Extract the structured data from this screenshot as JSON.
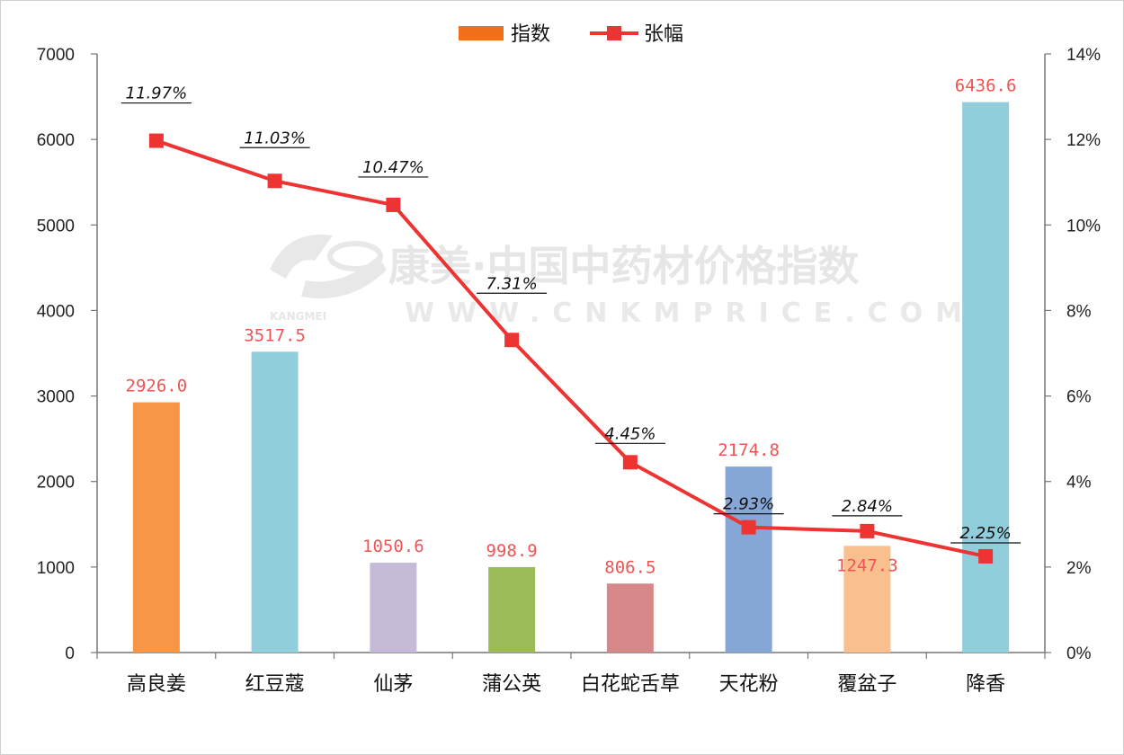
{
  "chart_data": {
    "type": "bar+line",
    "categories": [
      "高良姜",
      "红豆蔻",
      "仙茅",
      "蒲公英",
      "白花蛇舌草",
      "天花粉",
      "覆盆子",
      "降香"
    ],
    "series": [
      {
        "name": "指数",
        "type": "bar",
        "axis": "left",
        "values": [
          2926.0,
          3517.5,
          1050.6,
          998.9,
          806.5,
          2174.8,
          1247.3,
          6436.6
        ],
        "labels": [
          "2926.0",
          "3517.5",
          "1050.6",
          "998.9",
          "806.5",
          "2174.8",
          "1247.3",
          "6436.6"
        ],
        "colors": [
          "#f79646",
          "#92cddc",
          "#c5bbd8",
          "#9bbb59",
          "#d68888",
          "#86a6d6",
          "#fabf8f",
          "#92cddc"
        ]
      },
      {
        "name": "张幅",
        "type": "line",
        "axis": "right",
        "values": [
          11.97,
          11.03,
          10.47,
          7.31,
          4.45,
          2.93,
          2.84,
          2.25
        ],
        "labels": [
          "11.97%",
          "11.03%",
          "10.47%",
          "7.31%",
          "4.45%",
          "2.93%",
          "2.84%",
          "2.25%"
        ],
        "color": "#ee3333"
      }
    ],
    "y_left": {
      "min": 0,
      "max": 7000,
      "ticks": [
        "0",
        "1000",
        "2000",
        "3000",
        "4000",
        "5000",
        "6000",
        "7000"
      ]
    },
    "y_right": {
      "min": 0,
      "max": 14,
      "ticks": [
        "0%",
        "2%",
        "4%",
        "6%",
        "8%",
        "10%",
        "12%",
        "14%"
      ]
    },
    "legend": {
      "position": "top-center",
      "bar_color": "#f26f1c",
      "line_color": "#ee3333"
    },
    "grid": false
  },
  "watermark": {
    "cn": "康美·中国中药材价格指数",
    "brand": "KANGMEI",
    "url": "WWW.CNKMPRICE.COM"
  }
}
